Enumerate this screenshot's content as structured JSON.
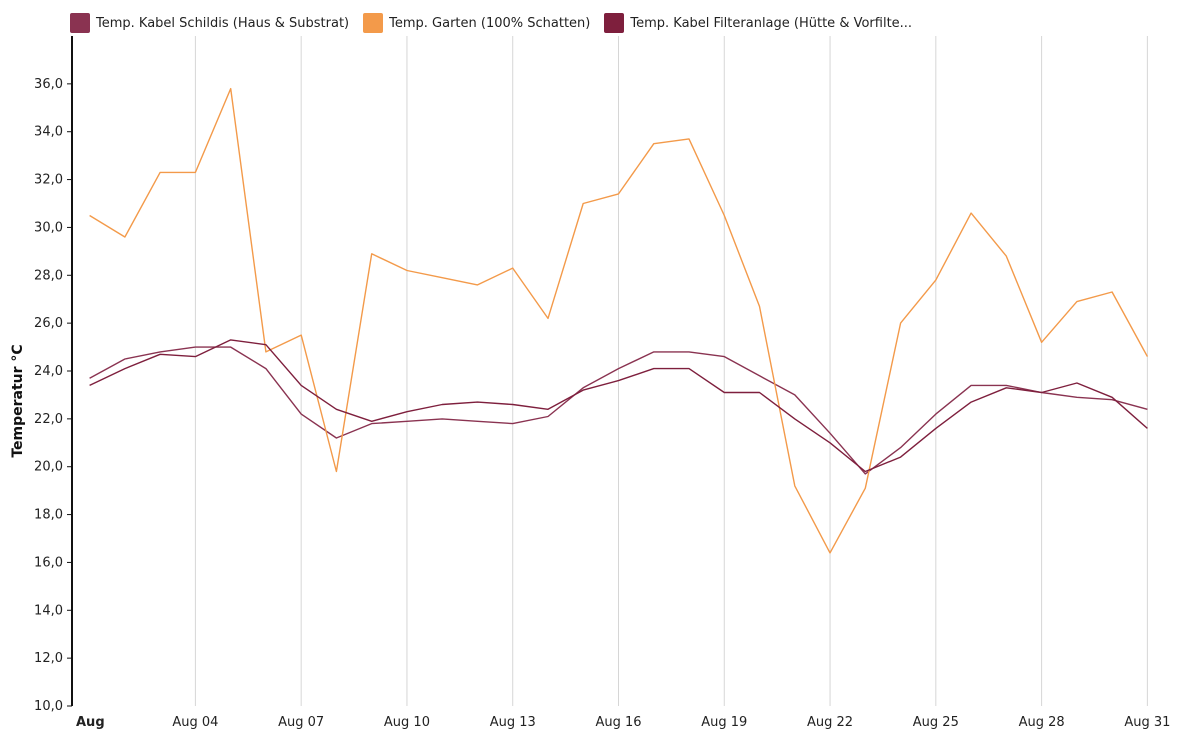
{
  "chart_data": {
    "type": "line",
    "ylabel": "Temperatur °C",
    "ylim": [
      10,
      38
    ],
    "yticks": [
      10,
      12,
      14,
      16,
      18,
      20,
      22,
      24,
      26,
      28,
      30,
      32,
      34,
      36
    ],
    "ytick_labels": [
      "10,0",
      "12,0",
      "14,0",
      "16,0",
      "18,0",
      "20,0",
      "22,0",
      "24,0",
      "26,0",
      "28,0",
      "30,0",
      "32,0",
      "34,0",
      "36,0"
    ],
    "x": [
      1,
      2,
      3,
      4,
      5,
      6,
      7,
      8,
      9,
      10,
      11,
      12,
      13,
      14,
      15,
      16,
      17,
      18,
      19,
      20,
      21,
      22,
      23,
      24,
      25,
      26,
      27,
      28,
      29,
      30,
      31
    ],
    "xlim": [
      0.5,
      31.5
    ],
    "xticks": [
      1,
      4,
      7,
      10,
      13,
      16,
      19,
      22,
      25,
      28,
      31
    ],
    "xtick_labels": [
      "Aug",
      "Aug 04",
      "Aug 07",
      "Aug 10",
      "Aug 13",
      "Aug 16",
      "Aug 19",
      "Aug 22",
      "Aug 25",
      "Aug 28",
      "Aug 31"
    ],
    "grid": "vertical",
    "legend": "top-left",
    "series": [
      {
        "name": "Temp. Kabel Schildis (Haus & Substrat)",
        "color": "#8a3351",
        "values": [
          23.7,
          24.5,
          24.8,
          25.0,
          25.0,
          24.1,
          22.2,
          21.2,
          21.8,
          21.9,
          22.0,
          21.9,
          21.8,
          22.1,
          23.3,
          24.1,
          24.8,
          24.8,
          24.6,
          23.8,
          23.0,
          21.4,
          19.7,
          20.8,
          22.2,
          23.4,
          23.4,
          23.1,
          22.9,
          22.8,
          22.4
        ]
      },
      {
        "name": "Temp. Garten (100% Schatten)",
        "color": "#f39a4a",
        "values": [
          30.5,
          29.6,
          32.3,
          32.3,
          35.8,
          24.8,
          25.5,
          19.8,
          28.9,
          28.2,
          27.9,
          27.6,
          28.3,
          26.2,
          31.0,
          31.4,
          33.5,
          33.7,
          30.5,
          26.7,
          19.2,
          16.4,
          19.1,
          26.0,
          27.8,
          30.6,
          28.8,
          25.2,
          26.9,
          27.3,
          24.6
        ]
      },
      {
        "name": "Temp. Kabel Filteranlage (Hütte & Vorfilte...",
        "color": "#7e1f3d",
        "values": [
          23.4,
          24.1,
          24.7,
          24.6,
          25.3,
          25.1,
          23.4,
          22.4,
          21.9,
          22.3,
          22.6,
          22.7,
          22.6,
          22.4,
          23.2,
          23.6,
          24.1,
          24.1,
          23.1,
          23.1,
          22.0,
          21.0,
          19.8,
          20.4,
          21.6,
          22.7,
          23.3,
          23.1,
          23.5,
          22.9,
          21.6
        ]
      }
    ]
  }
}
